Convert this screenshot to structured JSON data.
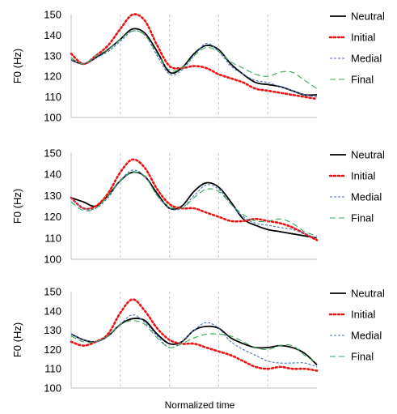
{
  "figure": {
    "xlabel": "Normalized time"
  },
  "styles": {
    "Neutral": {
      "color": "#000000",
      "dash": ""
    },
    "Initial": {
      "color": "#ee1111",
      "dash": "2 3"
    },
    "Medial": {
      "color": "#4472c4",
      "dash": "3 2"
    },
    "Final": {
      "color": "#33aa55",
      "dash": "7 4"
    }
  },
  "chart_data": [
    {
      "type": "line",
      "ylabel": "F0 (Hz)",
      "ylim": [
        100,
        150
      ],
      "yticks": [
        100,
        110,
        120,
        130,
        140,
        150
      ],
      "xlim": [
        0,
        1
      ],
      "vgrid": [
        0.2,
        0.4,
        0.6,
        0.8
      ],
      "grid": true,
      "legend": "right",
      "x": [
        0,
        0.05,
        0.1,
        0.15,
        0.2,
        0.25,
        0.3,
        0.35,
        0.4,
        0.45,
        0.5,
        0.55,
        0.6,
        0.65,
        0.7,
        0.75,
        0.8,
        0.85,
        0.9,
        0.95,
        1.0
      ],
      "series": [
        {
          "name": "Neutral",
          "values": [
            128,
            126,
            129,
            133,
            138,
            143,
            141,
            132,
            122,
            124,
            131,
            135,
            133,
            126,
            121,
            117,
            116,
            115,
            113,
            111,
            111
          ]
        },
        {
          "name": "Initial",
          "values": [
            131,
            126,
            130,
            135,
            143,
            150,
            147,
            135,
            125,
            124,
            125,
            124,
            121,
            119,
            117,
            114,
            113,
            112,
            111,
            110,
            109
          ]
        },
        {
          "name": "Medial",
          "values": [
            128,
            126,
            129,
            132,
            137,
            142,
            140,
            130,
            121,
            123,
            130,
            136,
            132,
            125,
            121,
            118,
            117,
            115,
            113,
            111,
            110
          ]
        },
        {
          "name": "Final",
          "values": [
            129,
            126,
            130,
            133,
            138,
            142,
            140,
            131,
            123,
            124,
            130,
            134,
            132,
            127,
            124,
            121,
            120,
            122,
            122,
            118,
            114
          ]
        }
      ]
    },
    {
      "type": "line",
      "ylabel": "F0 (Hz)",
      "ylim": [
        100,
        150
      ],
      "yticks": [
        100,
        110,
        120,
        130,
        140,
        150
      ],
      "xlim": [
        0,
        1
      ],
      "vgrid": [
        0.2,
        0.4,
        0.6,
        0.8
      ],
      "grid": true,
      "legend": "right",
      "x": [
        0,
        0.05,
        0.1,
        0.15,
        0.2,
        0.25,
        0.3,
        0.35,
        0.4,
        0.45,
        0.5,
        0.55,
        0.6,
        0.65,
        0.7,
        0.75,
        0.8,
        0.85,
        0.9,
        0.95,
        1.0
      ],
      "series": [
        {
          "name": "Neutral",
          "values": [
            129,
            127,
            125,
            130,
            137,
            141,
            139,
            131,
            124,
            125,
            132,
            136,
            134,
            127,
            119,
            116,
            114,
            113,
            112,
            111,
            110
          ]
        },
        {
          "name": "Initial",
          "values": [
            129,
            124,
            125,
            131,
            141,
            147,
            143,
            133,
            126,
            124,
            124,
            122,
            120,
            118,
            118,
            119,
            118,
            117,
            115,
            112,
            109
          ]
        },
        {
          "name": "Medial",
          "values": [
            129,
            124,
            124,
            129,
            137,
            142,
            139,
            130,
            124,
            124,
            130,
            135,
            133,
            126,
            120,
            117,
            116,
            115,
            114,
            112,
            110
          ]
        },
        {
          "name": "Final",
          "values": [
            127,
            123,
            124,
            130,
            137,
            141,
            139,
            130,
            125,
            124,
            129,
            133,
            132,
            126,
            121,
            118,
            118,
            119,
            117,
            113,
            111
          ]
        }
      ]
    },
    {
      "type": "line",
      "ylabel": "F0 (Hz)",
      "ylim": [
        100,
        150
      ],
      "yticks": [
        100,
        110,
        120,
        130,
        140,
        150
      ],
      "xlim": [
        0,
        1
      ],
      "vgrid": [
        0.2,
        0.4,
        0.6,
        0.8
      ],
      "grid": true,
      "legend": "right",
      "x": [
        0,
        0.05,
        0.1,
        0.15,
        0.2,
        0.25,
        0.3,
        0.35,
        0.4,
        0.45,
        0.5,
        0.55,
        0.6,
        0.65,
        0.7,
        0.75,
        0.8,
        0.85,
        0.9,
        0.95,
        1.0
      ],
      "series": [
        {
          "name": "Neutral",
          "values": [
            128,
            125,
            124,
            127,
            133,
            136,
            135,
            128,
            123,
            124,
            130,
            132,
            131,
            126,
            123,
            121,
            121,
            122,
            121,
            118,
            112
          ]
        },
        {
          "name": "Initial",
          "values": [
            124,
            122,
            124,
            128,
            139,
            146,
            140,
            131,
            125,
            123,
            123,
            121,
            119,
            117,
            114,
            111,
            110,
            111,
            110,
            110,
            109
          ]
        },
        {
          "name": "Medial",
          "values": [
            128,
            125,
            124,
            127,
            133,
            138,
            134,
            127,
            121,
            124,
            130,
            134,
            131,
            124,
            120,
            117,
            114,
            113,
            113,
            113,
            111
          ]
        },
        {
          "name": "Final",
          "values": [
            127,
            124,
            124,
            127,
            133,
            135,
            133,
            126,
            121,
            123,
            126,
            128,
            128,
            127,
            124,
            121,
            120,
            122,
            122,
            117,
            113
          ]
        }
      ]
    }
  ]
}
